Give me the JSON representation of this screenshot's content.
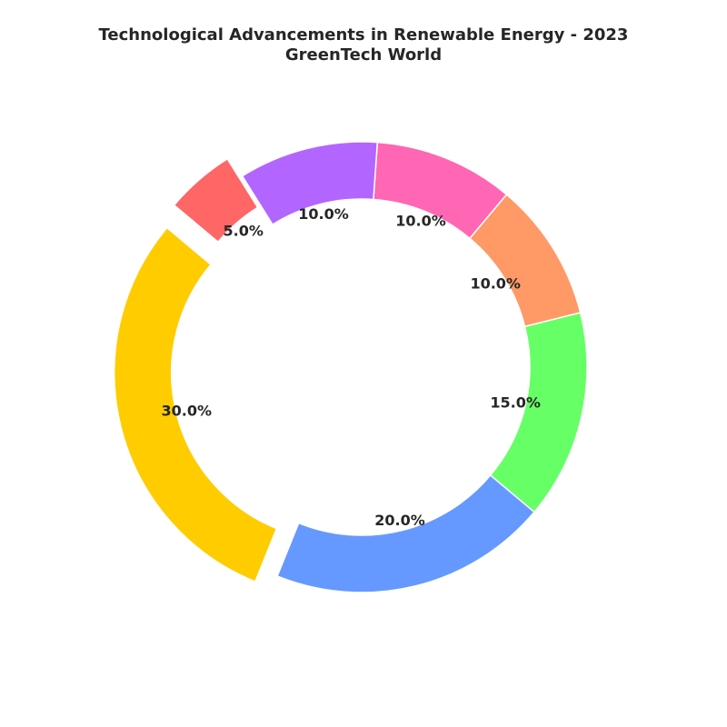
{
  "chart_data": {
    "type": "pie",
    "donut": true,
    "title": "Technological Advancements in Renewable Energy - 2023",
    "subtitle": "GreenTech World",
    "values": [
      30.0,
      20.0,
      15.0,
      10.0,
      10.0,
      10.0,
      5.0
    ],
    "value_labels": [
      "30.0%",
      "20.0%",
      "15.0%",
      "10.0%",
      "10.0%",
      "10.0%",
      "5.0%"
    ],
    "colors": [
      "#ffcc00",
      "#6699ff",
      "#66ff66",
      "#ff9966",
      "#ff66b3",
      "#b266ff",
      "#ff6666"
    ],
    "exploded": [
      true,
      false,
      false,
      false,
      false,
      false,
      true
    ],
    "start_angle_deg": 140,
    "direction": "counterclockwise",
    "legend": "none"
  }
}
